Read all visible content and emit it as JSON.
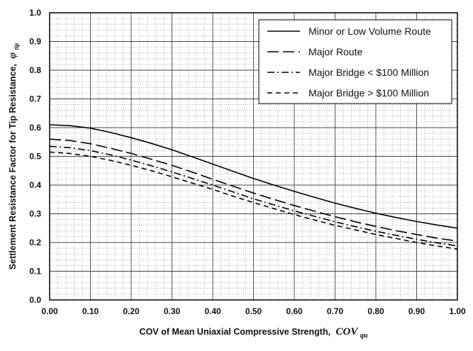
{
  "chart_data": {
    "type": "line",
    "title": "",
    "xlabel": "COV of Mean Uniaxial Compressive Strength,",
    "xlabel_symbol": "COV",
    "xlabel_subscript": "qu",
    "ylabel": "Settlement Resistance Factor for Tip Resistance,",
    "ylabel_symbol": "φ",
    "ylabel_subscript": "tip",
    "xlim": [
      0,
      1
    ],
    "ylim": [
      0,
      1
    ],
    "x_ticks": [
      "0.00",
      "0.10",
      "0.20",
      "0.30",
      "0.40",
      "0.50",
      "0.60",
      "0.70",
      "0.80",
      "0.90",
      "1.00"
    ],
    "y_ticks": [
      "0.0",
      "0.1",
      "0.2",
      "0.3",
      "0.4",
      "0.5",
      "0.6",
      "0.7",
      "0.8",
      "0.9",
      "1.0"
    ],
    "grid": true,
    "legend_position": "top-right",
    "x": [
      0.0,
      0.05,
      0.1,
      0.15,
      0.2,
      0.25,
      0.3,
      0.35,
      0.4,
      0.45,
      0.5,
      0.55,
      0.6,
      0.65,
      0.7,
      0.75,
      0.8,
      0.85,
      0.9,
      0.95,
      1.0
    ],
    "series": [
      {
        "name": "Minor or Low Volume Route",
        "dash": "solid",
        "values": [
          0.61,
          0.607,
          0.598,
          0.583,
          0.565,
          0.545,
          0.523,
          0.498,
          0.473,
          0.448,
          0.423,
          0.4,
          0.378,
          0.357,
          0.337,
          0.319,
          0.302,
          0.287,
          0.273,
          0.261,
          0.25
        ]
      },
      {
        "name": "Major Route",
        "dash": "longdash",
        "values": [
          0.56,
          0.555,
          0.544,
          0.528,
          0.51,
          0.49,
          0.469,
          0.445,
          0.42,
          0.396,
          0.372,
          0.35,
          0.329,
          0.309,
          0.29,
          0.272,
          0.256,
          0.241,
          0.228,
          0.215,
          0.205
        ]
      },
      {
        "name": "Major Bridge < $100 Million",
        "dash": "dashdot",
        "values": [
          0.535,
          0.53,
          0.52,
          0.505,
          0.487,
          0.467,
          0.446,
          0.423,
          0.4,
          0.376,
          0.352,
          0.331,
          0.31,
          0.291,
          0.272,
          0.255,
          0.239,
          0.225,
          0.211,
          0.199,
          0.188
        ]
      },
      {
        "name": "Major Bridge > $100 Million",
        "dash": "shortdash",
        "values": [
          0.515,
          0.51,
          0.5,
          0.486,
          0.469,
          0.45,
          0.429,
          0.407,
          0.385,
          0.361,
          0.339,
          0.318,
          0.297,
          0.278,
          0.26,
          0.244,
          0.228,
          0.214,
          0.2,
          0.188,
          0.177
        ]
      }
    ]
  }
}
